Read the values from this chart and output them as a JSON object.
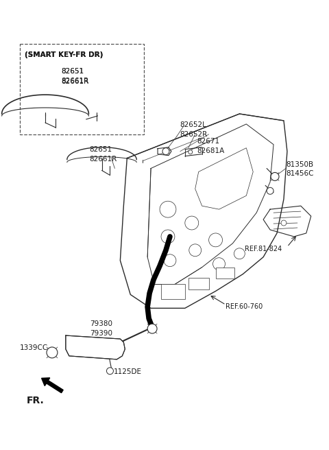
{
  "bg_color": "#ffffff",
  "line_color": "#2a2a2a",
  "text_color": "#1a1a1a",
  "figsize": [
    4.8,
    6.56
  ],
  "dpi": 100,
  "labels": {
    "smart_key_title": "(SMART KEY-FR DR)",
    "sk_82651": "82651",
    "sk_82661R": "82661R",
    "p82652L": "82652L",
    "p82652R": "82652R",
    "p82651b": "82651",
    "p82661Rb": "82661R",
    "p82671": "82671",
    "p82681A": "82681A",
    "p81350B": "81350B",
    "p81456C": "81456C",
    "ref81824": "REF.81-824",
    "ref60760": "REF.60-760",
    "p79380": "79380",
    "p79390": "79390",
    "p1339CC": "1339CC",
    "p1125DE": "1125DE",
    "fr": "FR."
  }
}
